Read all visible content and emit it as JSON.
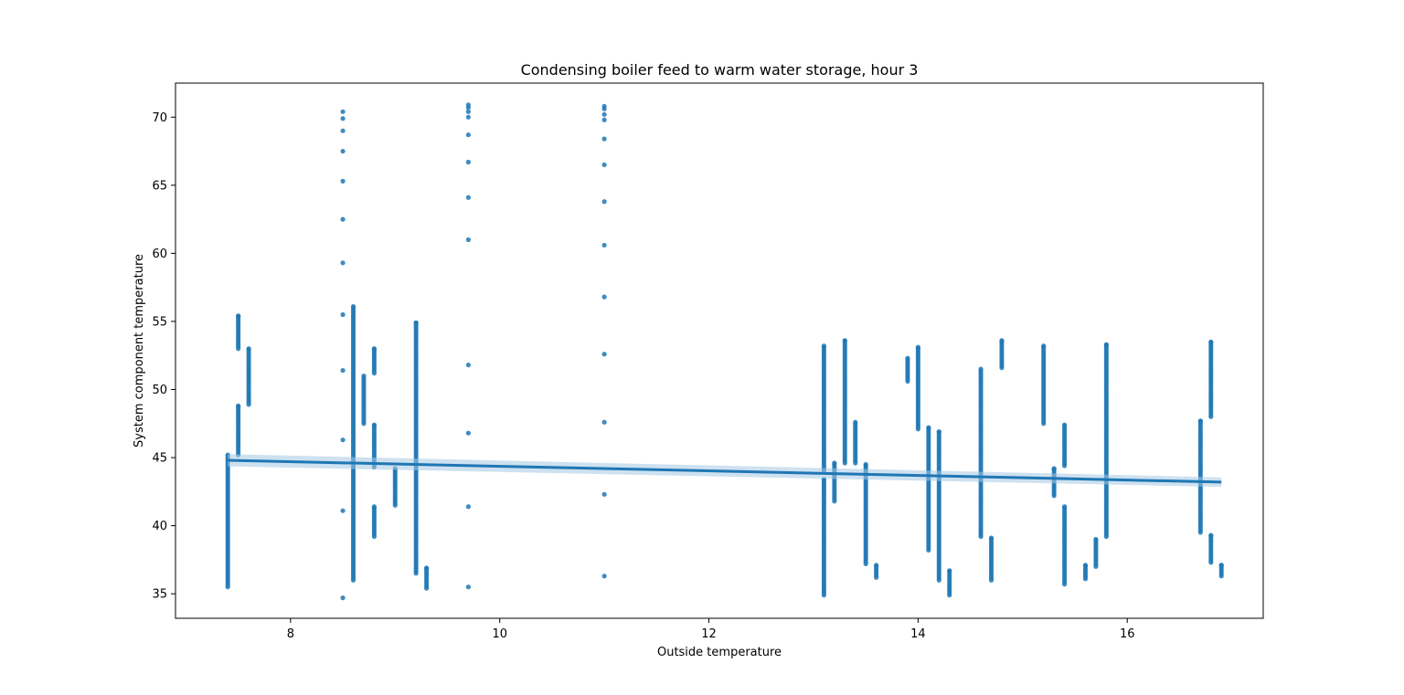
{
  "chart_data": {
    "type": "scatter",
    "title": "Condensing boiler feed to warm water storage, hour 3",
    "xlabel": "Outside temperature",
    "ylabel": "System component temperature",
    "xlim": [
      6.9,
      17.3
    ],
    "ylim": [
      33.2,
      72.5
    ],
    "xticks": [
      8,
      10,
      12,
      14,
      16
    ],
    "yticks": [
      35,
      40,
      45,
      50,
      55,
      60,
      65,
      70
    ],
    "grid": false,
    "legend": "none",
    "colors": {
      "points": "#1f77b4",
      "line": "#1f77b4",
      "ci_band": "#a6c8e4"
    },
    "regression": {
      "x": [
        7.4,
        16.9
      ],
      "y": [
        44.8,
        43.2
      ],
      "ci_halfwidth": [
        0.45,
        0.35
      ]
    },
    "clusters": [
      {
        "x": 7.4,
        "ranges": [
          [
            35.5,
            45.2
          ]
        ]
      },
      {
        "x": 7.5,
        "ranges": [
          [
            45.2,
            48.8
          ],
          [
            53.0,
            55.4
          ]
        ]
      },
      {
        "x": 7.6,
        "ranges": [
          [
            48.9,
            53.0
          ]
        ]
      },
      {
        "x": 8.5,
        "points": [
          34.7,
          41.1,
          46.3,
          51.4,
          55.5,
          59.3,
          62.5,
          65.3,
          67.5,
          69.0,
          69.9,
          70.4
        ]
      },
      {
        "x": 8.6,
        "ranges": [
          [
            36.0,
            56.1
          ]
        ]
      },
      {
        "x": 8.7,
        "ranges": [
          [
            47.5,
            51.0
          ]
        ]
      },
      {
        "x": 8.8,
        "ranges": [
          [
            39.2,
            41.4
          ],
          [
            44.3,
            47.4
          ],
          [
            51.2,
            53.0
          ]
        ]
      },
      {
        "x": 9.0,
        "ranges": [
          [
            41.5,
            44.2
          ]
        ]
      },
      {
        "x": 9.2,
        "ranges": [
          [
            36.5,
            54.9
          ]
        ]
      },
      {
        "x": 9.3,
        "ranges": [
          [
            35.4,
            36.9
          ]
        ]
      },
      {
        "x": 9.7,
        "points": [
          35.5,
          41.4,
          46.8,
          51.8,
          61.0,
          64.1,
          66.7,
          68.7,
          70.0,
          70.4,
          70.7,
          70.9
        ]
      },
      {
        "x": 11.0,
        "points": [
          36.3,
          42.3,
          47.6,
          52.6,
          56.8,
          60.6,
          63.8,
          66.5,
          68.4,
          69.8,
          70.2,
          70.6,
          70.8
        ]
      },
      {
        "x": 13.1,
        "ranges": [
          [
            34.9,
            43.4
          ],
          [
            44.0,
            53.2
          ]
        ]
      },
      {
        "x": 13.2,
        "ranges": [
          [
            41.8,
            44.6
          ]
        ]
      },
      {
        "x": 13.3,
        "ranges": [
          [
            44.6,
            53.6
          ]
        ]
      },
      {
        "x": 13.4,
        "ranges": [
          [
            44.6,
            47.6
          ]
        ]
      },
      {
        "x": 13.5,
        "ranges": [
          [
            37.2,
            44.5
          ]
        ]
      },
      {
        "x": 13.6,
        "ranges": [
          [
            36.2,
            37.1
          ]
        ]
      },
      {
        "x": 13.9,
        "ranges": [
          [
            50.6,
            52.3
          ]
        ]
      },
      {
        "x": 14.0,
        "ranges": [
          [
            47.1,
            53.1
          ]
        ]
      },
      {
        "x": 14.1,
        "ranges": [
          [
            38.2,
            47.2
          ]
        ]
      },
      {
        "x": 14.2,
        "ranges": [
          [
            36.0,
            46.9
          ]
        ]
      },
      {
        "x": 14.3,
        "ranges": [
          [
            34.9,
            36.7
          ]
        ]
      },
      {
        "x": 14.6,
        "ranges": [
          [
            39.2,
            51.5
          ]
        ]
      },
      {
        "x": 14.7,
        "ranges": [
          [
            36.0,
            39.1
          ]
        ]
      },
      {
        "x": 14.8,
        "ranges": [
          [
            51.6,
            53.6
          ]
        ]
      },
      {
        "x": 15.2,
        "ranges": [
          [
            47.5,
            53.2
          ]
        ]
      },
      {
        "x": 15.3,
        "ranges": [
          [
            42.2,
            44.2
          ]
        ]
      },
      {
        "x": 15.4,
        "ranges": [
          [
            35.7,
            41.4
          ],
          [
            44.4,
            47.4
          ]
        ]
      },
      {
        "x": 15.6,
        "ranges": [
          [
            36.1,
            37.1
          ]
        ]
      },
      {
        "x": 15.7,
        "ranges": [
          [
            37.0,
            39.0
          ]
        ]
      },
      {
        "x": 15.8,
        "ranges": [
          [
            39.2,
            53.3
          ]
        ]
      },
      {
        "x": 16.7,
        "ranges": [
          [
            39.5,
            47.7
          ]
        ]
      },
      {
        "x": 16.8,
        "ranges": [
          [
            37.3,
            39.3
          ],
          [
            48.0,
            53.5
          ]
        ]
      },
      {
        "x": 16.9,
        "ranges": [
          [
            36.3,
            37.1
          ]
        ]
      }
    ]
  }
}
